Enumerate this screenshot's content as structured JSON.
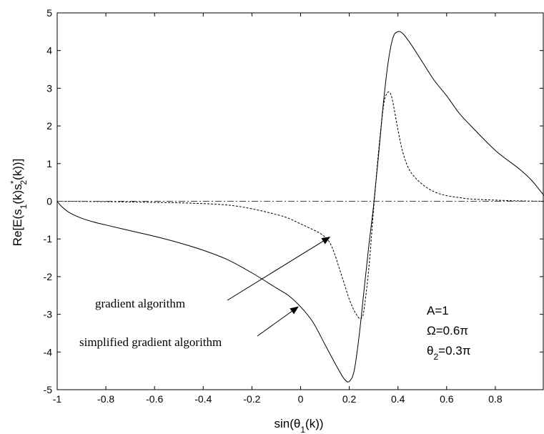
{
  "chart_data": {
    "type": "line",
    "title": "",
    "xlabel": {
      "main": "sin(θ",
      "sub": "1",
      "tail": "(k))"
    },
    "ylabel": {
      "p1": "Re[E(s",
      "sub1": "1",
      "p2": "(k)s",
      "sup": "*",
      "sub2": "2",
      "p3": "(k))]"
    },
    "xlim": [
      -1,
      1
    ],
    "ylim": [
      -5,
      5
    ],
    "x_ticks": [
      -1,
      -0.8,
      -0.6,
      -0.4,
      -0.2,
      0,
      0.2,
      0.4,
      0.6,
      0.8
    ],
    "x_tick_labels": [
      "-1",
      "-0.8",
      "-0.6",
      "-0.4",
      "-0.2",
      "0",
      "0.2",
      "0.4",
      "0.6",
      "0.8"
    ],
    "y_ticks": [
      -5,
      -4,
      -3,
      -2,
      -1,
      0,
      1,
      2,
      3,
      4,
      5
    ],
    "y_tick_labels": [
      "-5",
      "-4",
      "-3",
      "-2",
      "-1",
      "0",
      "1",
      "2",
      "3",
      "4",
      "5"
    ],
    "grid": false,
    "series": [
      {
        "style": "solid",
        "color": "#000000",
        "x": [
          -1,
          -0.98,
          -0.95,
          -0.9,
          -0.85,
          -0.8,
          -0.7,
          -0.6,
          -0.5,
          -0.4,
          -0.3,
          -0.2,
          -0.1,
          -0.05,
          0,
          0.05,
          0.1,
          0.15,
          0.18,
          0.2,
          0.22,
          0.24,
          0.26,
          0.28,
          0.3,
          0.32,
          0.34,
          0.36,
          0.38,
          0.4,
          0.42,
          0.45,
          0.5,
          0.55,
          0.6,
          0.65,
          0.7,
          0.8,
          0.9,
          0.95,
          1.0
        ],
        "y": [
          0,
          -0.15,
          -0.3,
          -0.45,
          -0.55,
          -0.63,
          -0.78,
          -0.93,
          -1.1,
          -1.3,
          -1.55,
          -1.9,
          -2.3,
          -2.5,
          -2.8,
          -3.2,
          -3.8,
          -4.4,
          -4.72,
          -4.78,
          -4.5,
          -3.6,
          -2.4,
          -1.2,
          -0.1,
          1.2,
          2.6,
          3.7,
          4.35,
          4.5,
          4.45,
          4.2,
          3.7,
          3.2,
          2.8,
          2.35,
          2.0,
          1.35,
          0.85,
          0.55,
          0.15
        ]
      },
      {
        "style": "dashed",
        "color": "#000000",
        "x": [
          -1,
          -0.8,
          -0.6,
          -0.45,
          -0.3,
          -0.2,
          -0.1,
          -0.05,
          0,
          0.05,
          0.08,
          0.1,
          0.12,
          0.14,
          0.16,
          0.18,
          0.2,
          0.22,
          0.24,
          0.25,
          0.26,
          0.28,
          0.3,
          0.32,
          0.34,
          0.35,
          0.36,
          0.37,
          0.38,
          0.4,
          0.42,
          0.45,
          0.5,
          0.55,
          0.6,
          0.65,
          0.7,
          0.8,
          0.9,
          1.0
        ],
        "y": [
          0,
          -0.01,
          -0.03,
          -0.05,
          -0.1,
          -0.2,
          -0.35,
          -0.45,
          -0.6,
          -0.75,
          -0.85,
          -0.95,
          -1.1,
          -1.4,
          -1.8,
          -2.2,
          -2.6,
          -2.9,
          -3.1,
          -3.1,
          -2.9,
          -1.8,
          -0.2,
          1.3,
          2.5,
          2.8,
          2.9,
          2.85,
          2.6,
          1.9,
          1.3,
          0.8,
          0.45,
          0.25,
          0.15,
          0.1,
          0.06,
          0.03,
          0.01,
          0
        ]
      },
      {
        "style": "dashdot",
        "color": "#3333cc",
        "x": [
          -1,
          1
        ],
        "y": [
          0,
          0
        ]
      }
    ],
    "annotations": [
      {
        "text": "gradient algorithm",
        "arrow_to": [
          0.12,
          -0.95
        ]
      },
      {
        "text": "simplified gradient algorithm",
        "arrow_to": [
          -0.01,
          -2.8
        ]
      }
    ],
    "params": {
      "line1": "A=1",
      "line2": "Ω=0.6π",
      "line3": {
        "main": "θ",
        "sub": "2",
        "tail": "=0.3π"
      }
    }
  }
}
